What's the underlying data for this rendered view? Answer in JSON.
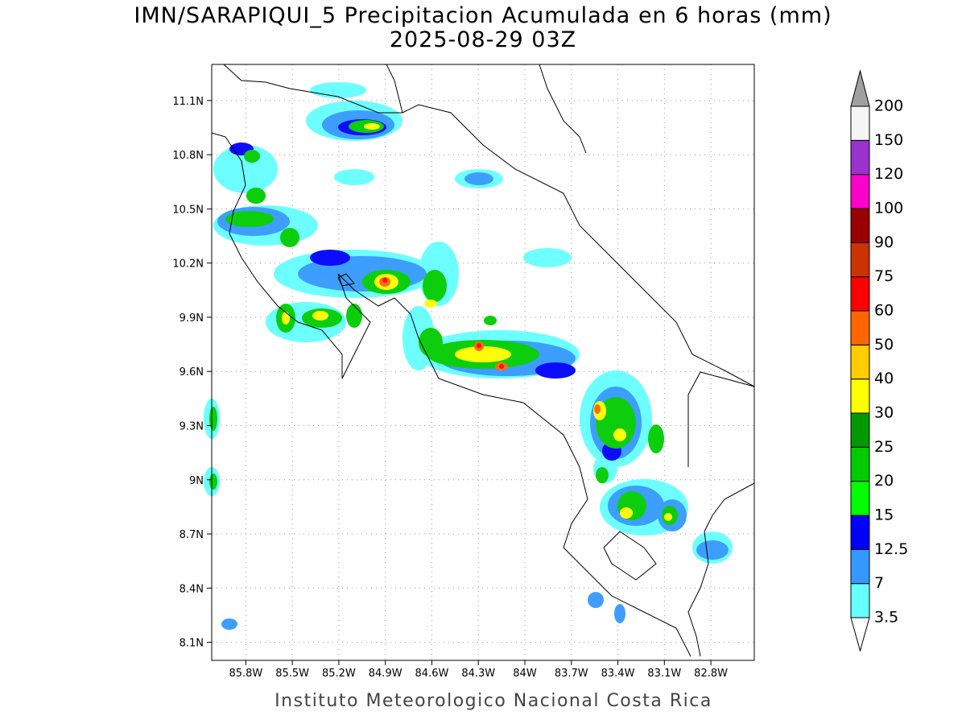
{
  "title": "IMN/SARAPIQUI_5 Precipitacion Acumulada en 6 horas (mm)",
  "subtitle": "2025-08-29 03Z",
  "footer": "Instituto Meteorologico Nacional Costa Rica",
  "map": {
    "lon_range": [
      -86.02,
      -82.52
    ],
    "lat_range": [
      8.0,
      11.3
    ],
    "lon_ticks": [
      {
        "value": -85.8,
        "label": "85.8W"
      },
      {
        "value": -85.5,
        "label": "85.5W"
      },
      {
        "value": -85.2,
        "label": "85.2W"
      },
      {
        "value": -84.9,
        "label": "84.9W"
      },
      {
        "value": -84.6,
        "label": "84.6W"
      },
      {
        "value": -84.3,
        "label": "84.3W"
      },
      {
        "value": -84,
        "label": "84W"
      },
      {
        "value": -83.7,
        "label": "83.7W"
      },
      {
        "value": -83.4,
        "label": "83.4W"
      },
      {
        "value": -83.1,
        "label": "83.1W"
      },
      {
        "value": -82.8,
        "label": "82.8W"
      }
    ],
    "lat_ticks": [
      {
        "value": 8.1,
        "label": "8.1N"
      },
      {
        "value": 8.4,
        "label": "8.4N"
      },
      {
        "value": 8.7,
        "label": "8.7N"
      },
      {
        "value": 9,
        "label": "9N"
      },
      {
        "value": 9.3,
        "label": "9.3N"
      },
      {
        "value": 9.6,
        "label": "9.6N"
      },
      {
        "value": 9.9,
        "label": "9.9N"
      },
      {
        "value": 10.2,
        "label": "10.2N"
      },
      {
        "value": 10.5,
        "label": "10.5N"
      },
      {
        "value": 10.8,
        "label": "10.8N"
      },
      {
        "value": 11.1,
        "label": "11.1N"
      }
    ],
    "grid": true
  },
  "colorbar": {
    "levels": [
      3.5,
      7,
      12.5,
      15,
      20,
      25,
      30,
      40,
      50,
      60,
      75,
      90,
      100,
      120,
      150,
      200
    ],
    "colors": [
      "#ffffff",
      "#66ffff",
      "#3399ff",
      "#0000ff",
      "#00ff00",
      "#00cc00",
      "#009900",
      "#ffff00",
      "#ffcc00",
      "#ff6600",
      "#ff0000",
      "#cc3300",
      "#990000",
      "#ff00cc",
      "#9933cc",
      "#f5f5f5",
      "#a0a0a0"
    ]
  }
}
